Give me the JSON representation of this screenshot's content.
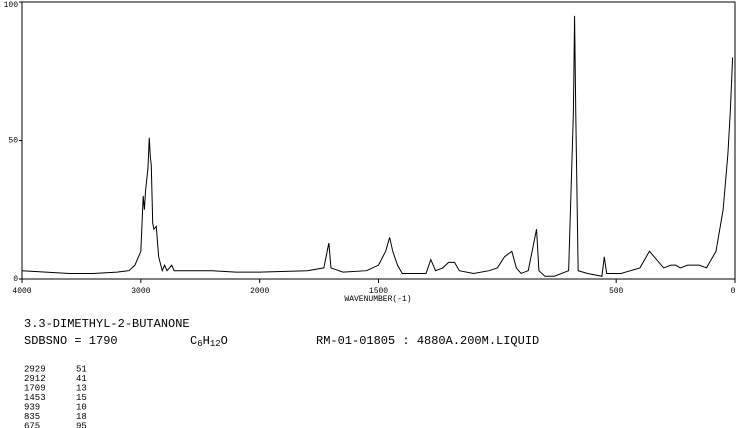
{
  "chart_data": {
    "type": "line",
    "title": "3.3-DIMETHYL-2-BUTANONE",
    "sdbs_no": "SDBSNO = 1790",
    "formula": [
      "C",
      "6",
      "H",
      "12",
      "O"
    ],
    "measurement": "RM-01-01805 : 4880A.200M.LIQUID",
    "xlabel": "WAVENUMBER(-1)",
    "xlim": [
      4000,
      0
    ],
    "xticks": [
      4000,
      3000,
      2000,
      1500,
      500,
      0
    ],
    "x_scale_change": 2000,
    "ylim": [
      0,
      100
    ],
    "yticks": [
      0,
      50,
      100
    ],
    "color": "#000000",
    "x": [
      4000,
      3800,
      3600,
      3400,
      3200,
      3100,
      3050,
      3000,
      2980,
      2970,
      2960,
      2940,
      2929,
      2920,
      2912,
      2900,
      2890,
      2870,
      2850,
      2820,
      2800,
      2780,
      2740,
      2720,
      2600,
      2400,
      2200,
      2000,
      1800,
      1730,
      1709,
      1700,
      1650,
      1550,
      1500,
      1470,
      1453,
      1440,
      1420,
      1400,
      1300,
      1280,
      1260,
      1230,
      1205,
      1180,
      1160,
      1100,
      1035,
      1000,
      970,
      955,
      939,
      920,
      900,
      870,
      835,
      825,
      800,
      760,
      700,
      680,
      675,
      670,
      660,
      620,
      560,
      550,
      540,
      480,
      440,
      400,
      360,
      340,
      300,
      270,
      250,
      230,
      200,
      150,
      120,
      80,
      50,
      30,
      20,
      10
    ],
    "values": [
      3,
      2.5,
      2,
      2,
      2.5,
      3,
      5,
      10,
      30,
      25,
      32,
      40,
      51,
      44,
      41,
      20,
      18,
      19,
      8,
      3,
      5,
      3,
      5,
      3,
      3,
      3,
      2.5,
      2.5,
      3,
      4,
      13,
      4,
      2.5,
      3,
      5,
      10,
      15,
      10,
      5,
      2,
      2,
      7,
      3,
      4,
      6,
      6,
      3,
      2,
      3,
      4,
      8,
      9,
      10,
      4,
      2,
      3,
      18,
      3,
      1,
      1,
      3,
      60,
      95,
      60,
      3,
      2,
      1,
      8,
      2,
      2,
      3,
      4,
      10,
      8,
      4,
      5,
      5,
      4,
      5,
      5,
      4,
      10,
      25,
      45,
      60,
      80
    ],
    "peak_table": [
      [
        "2929",
        "51"
      ],
      [
        "2912",
        "41"
      ],
      [
        "1709",
        "13"
      ],
      [
        "1453",
        "15"
      ],
      [
        "939",
        "10"
      ],
      [
        "835",
        "18"
      ],
      [
        "675",
        "95"
      ]
    ]
  }
}
